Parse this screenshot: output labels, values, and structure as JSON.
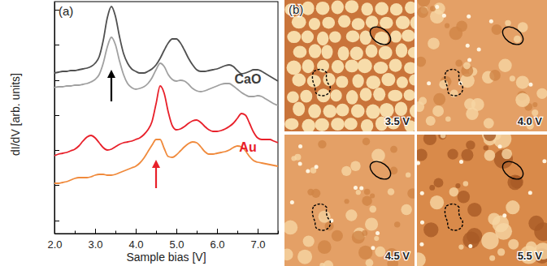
{
  "chart_data": [
    {
      "type": "line",
      "panel_label": "(a)",
      "x_label": "Sample bias [V]",
      "y_label": "dI/dV [arb. units]",
      "xlim": [
        2.0,
        7.5
      ],
      "ylim": [
        0,
        28.6
      ],
      "xticks": [
        {
          "value": 2.0,
          "label": "2.0"
        },
        {
          "value": 2.5,
          "label": null
        },
        {
          "value": 3.0,
          "label": "3.0"
        },
        {
          "value": 3.5,
          "label": null
        },
        {
          "value": 4.0,
          "label": "4.0"
        },
        {
          "value": 4.5,
          "label": null
        },
        {
          "value": 5.0,
          "label": "5.0"
        },
        {
          "value": 5.5,
          "label": null
        },
        {
          "value": 6.0,
          "label": "6.0"
        },
        {
          "value": 6.5,
          "label": null
        },
        {
          "value": 7.0,
          "label": "7.0"
        },
        {
          "value": 7.5,
          "label": null
        }
      ],
      "yticks": [
        1.6,
        6.0,
        10.3,
        14.6,
        18.9,
        23.3,
        27.6
      ],
      "tick_labels": "x",
      "x": [
        2.0,
        2.1,
        2.2,
        2.3,
        2.4,
        2.5,
        2.6,
        2.7,
        2.8,
        2.9,
        3.0,
        3.1,
        3.2,
        3.3,
        3.4,
        3.5,
        3.6,
        3.7,
        3.8,
        3.9,
        4.0,
        4.1,
        4.2,
        4.3,
        4.4,
        4.5,
        4.6,
        4.7,
        4.8,
        4.9,
        5.0,
        5.1,
        5.2,
        5.3,
        5.4,
        5.5,
        5.6,
        5.7,
        5.8,
        5.9,
        6.0,
        6.1,
        6.2,
        6.3,
        6.4,
        6.5,
        6.6,
        6.7,
        6.8,
        6.9,
        7.0,
        7.1,
        7.2,
        7.3,
        7.4,
        7.5
      ],
      "series": [
        {
          "color": "#505050",
          "values": [
            19.8,
            19.9,
            20.0,
            20.0,
            20.1,
            20.1,
            20.2,
            20.3,
            20.4,
            20.6,
            21.0,
            21.8,
            23.8,
            26.6,
            28.0,
            26.8,
            24.3,
            22.2,
            21.0,
            20.3,
            20.0,
            19.8,
            19.8,
            20.0,
            20.3,
            20.8,
            21.6,
            22.6,
            23.5,
            24.0,
            24.0,
            23.5,
            22.6,
            21.6,
            20.8,
            20.2,
            20.0,
            20.0,
            20.1,
            20.2,
            20.3,
            20.5,
            20.7,
            20.8,
            20.6,
            20.1,
            19.7,
            19.8,
            20.0,
            20.2,
            20.2,
            20.0,
            19.7,
            19.4,
            19.1,
            18.8
          ]
        },
        {
          "color": "#a0a0a0",
          "values": [
            18.0,
            18.1,
            18.1,
            18.2,
            18.2,
            18.3,
            18.3,
            18.4,
            18.5,
            18.7,
            19.0,
            19.6,
            21.0,
            23.0,
            24.2,
            23.3,
            21.3,
            19.6,
            18.5,
            18.0,
            17.8,
            17.9,
            18.1,
            18.5,
            19.2,
            20.2,
            21.0,
            20.6,
            19.6,
            19.0,
            18.8,
            18.9,
            18.8,
            18.4,
            17.9,
            17.6,
            17.5,
            17.6,
            17.8,
            18.0,
            18.2,
            18.4,
            18.5,
            18.5,
            18.2,
            17.8,
            17.4,
            17.1,
            16.9,
            16.9,
            17.0,
            16.9,
            16.6,
            16.3,
            16.0,
            15.8
          ]
        },
        {
          "color": "#e8202a",
          "values": [
            9.6,
            9.8,
            9.9,
            10.0,
            10.2,
            10.4,
            10.8,
            11.4,
            11.9,
            12.1,
            11.8,
            11.2,
            10.6,
            10.3,
            10.4,
            10.7,
            11.0,
            11.2,
            11.3,
            11.4,
            11.6,
            11.8,
            12.2,
            12.8,
            13.8,
            16.0,
            18.2,
            17.3,
            15.0,
            13.3,
            12.8,
            12.9,
            13.2,
            13.6,
            13.9,
            14.0,
            13.7,
            13.2,
            12.8,
            12.6,
            12.6,
            12.7,
            12.9,
            13.2,
            13.6,
            14.2,
            14.8,
            14.6,
            13.6,
            12.5,
            11.8,
            11.6,
            11.6,
            11.6,
            11.4,
            11.2
          ]
        },
        {
          "color": "#f08a3c",
          "values": [
            6.2,
            6.2,
            6.3,
            6.4,
            6.6,
            6.8,
            6.9,
            6.9,
            6.9,
            7.0,
            7.2,
            7.3,
            7.3,
            7.2,
            7.2,
            7.3,
            7.5,
            7.7,
            7.9,
            8.1,
            8.3,
            8.7,
            9.3,
            10.1,
            10.9,
            11.6,
            11.6,
            10.5,
            9.5,
            9.4,
            9.7,
            10.2,
            10.7,
            11.1,
            11.3,
            11.2,
            10.7,
            10.1,
            9.8,
            9.8,
            9.9,
            10.0,
            10.1,
            10.3,
            10.6,
            10.8,
            10.7,
            10.2,
            9.5,
            9.0,
            8.8,
            8.7,
            8.6,
            8.5,
            8.4,
            8.3
          ]
        }
      ],
      "annotations": [
        {
          "text": "CaO",
          "color": "#3c3c3c"
        },
        {
          "text": "Au",
          "color": "#e8202a"
        }
      ],
      "arrows": [
        {
          "x": 3.4,
          "color": "#000000"
        },
        {
          "x": 4.5,
          "color": "#e8202a"
        }
      ]
    },
    {
      "type": "image",
      "panel_label": "(b)",
      "images": [
        {
          "label": "3.5 V"
        },
        {
          "label": "4.0 V"
        },
        {
          "label": "4.5 V"
        },
        {
          "label": "5.5 V"
        }
      ]
    }
  ]
}
